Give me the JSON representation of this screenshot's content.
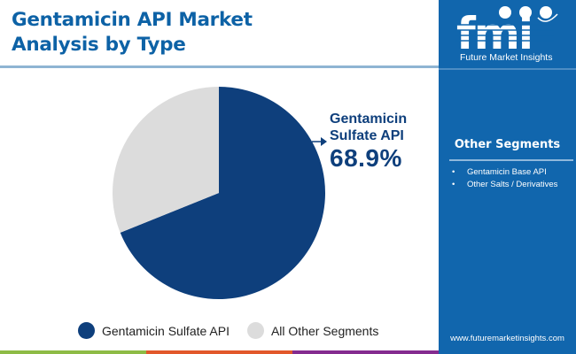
{
  "title": {
    "line1": "Gentamicin API Market",
    "line2": "Analysis by Type"
  },
  "callout": {
    "label_line1": "Gentamicin",
    "label_line2": "Sulfate API",
    "value": "68.9%"
  },
  "legend": [
    {
      "label": "Gentamicin Sulfate API",
      "color": "#0e3f7c"
    },
    {
      "label": "All Other Segments",
      "color": "#dcdcdc"
    }
  ],
  "side_panel": {
    "logo_letters": "fmi",
    "logo_text": "Future Market Insights",
    "segments_title": "Other Segments",
    "segments": [
      "Gentamicin Base API",
      "Other Salts / Derivatives"
    ],
    "website": "www.futuremarketinsights.com"
  },
  "bottom_bar_colors": [
    "#8dbb45",
    "#e2582a",
    "#842b8f"
  ],
  "chart_data": {
    "type": "pie",
    "title": "Gentamicin API Market Analysis by Type",
    "categories": [
      "Gentamicin Sulfate API",
      "All Other Segments"
    ],
    "values": [
      68.9,
      31.1
    ],
    "colors": [
      "#0e3f7c",
      "#dcdcdc"
    ],
    "annotations": [
      {
        "label": "Gentamicin Sulfate API",
        "value": "68.9%"
      }
    ],
    "legend_position": "bottom",
    "start_angle": "12 o'clock, clockwise"
  }
}
